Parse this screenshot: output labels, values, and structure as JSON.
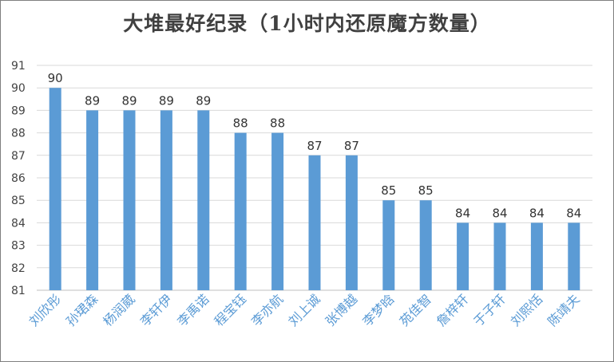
{
  "chart_data": {
    "type": "bar",
    "title": "大堆最好纪录（1小时内还原魔方数量）",
    "categories": [
      "刘欣彤",
      "孙珺森",
      "杨润葳",
      "李轩伊",
      "李禹诺",
      "程宝钰",
      "李亦航",
      "刘上诚",
      "张博越",
      "李梦晗",
      "苑佳智",
      "詹梓轩",
      "于子轩",
      "刘熙恬",
      "陈靖夫"
    ],
    "values": [
      90,
      89,
      89,
      89,
      89,
      88,
      88,
      87,
      87,
      85,
      85,
      84,
      84,
      84,
      84
    ],
    "ylim": [
      81,
      91
    ],
    "yticks": [
      81,
      82,
      83,
      84,
      85,
      86,
      87,
      88,
      89,
      90,
      91
    ],
    "xlabel": "",
    "ylabel": "",
    "grid": true,
    "legend": "none",
    "bar_color": "#5b9bd5",
    "grid_color": "#d9d9d9"
  }
}
